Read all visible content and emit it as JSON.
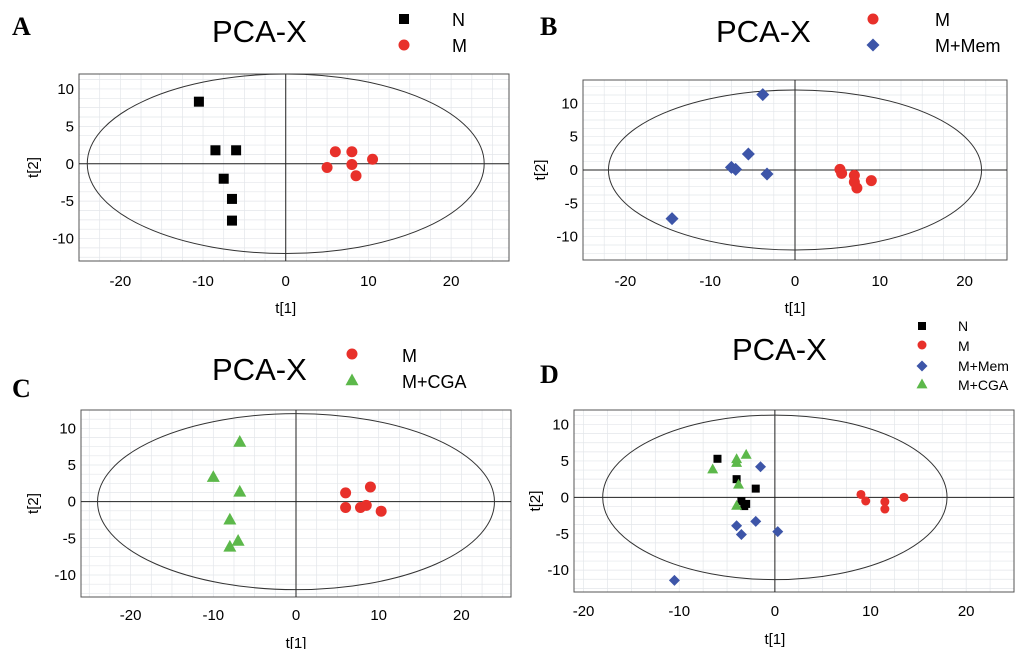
{
  "figure": {
    "panels": [
      "A",
      "B",
      "C",
      "D"
    ]
  },
  "chart_data": [
    {
      "type": "scatter",
      "panel": "A",
      "title": "PCA-X",
      "xlabel": "t[1]",
      "ylabel": "t[2]",
      "xlim": [
        -25,
        27
      ],
      "ylim": [
        -13,
        12
      ],
      "xticks": [
        -20,
        -10,
        0,
        10,
        20
      ],
      "yticks": [
        10,
        5,
        0,
        -5,
        -10
      ],
      "ellipse": {
        "rx": 24,
        "ry": 12
      },
      "grid": true,
      "legend": "top",
      "series": [
        {
          "name": "N",
          "color": "#000000",
          "marker": "square",
          "points": [
            [
              -10.5,
              8.3
            ],
            [
              -8.5,
              1.8
            ],
            [
              -6,
              1.8
            ],
            [
              -7.5,
              -2
            ],
            [
              -6.5,
              -4.7
            ],
            [
              -6.5,
              -7.6
            ]
          ]
        },
        {
          "name": "M",
          "color": "#e8302a",
          "marker": "circle",
          "points": [
            [
              5,
              -0.5
            ],
            [
              6,
              1.6
            ],
            [
              8,
              1.6
            ],
            [
              10.5,
              0.6
            ],
            [
              8,
              -0.1
            ],
            [
              8.5,
              -1.6
            ]
          ]
        }
      ]
    },
    {
      "type": "scatter",
      "panel": "B",
      "title": "PCA-X",
      "xlabel": "t[1]",
      "ylabel": "t[2]",
      "xlim": [
        -25,
        25
      ],
      "ylim": [
        -13.5,
        13.5
      ],
      "xticks": [
        -20,
        -10,
        0,
        10,
        20
      ],
      "yticks": [
        10,
        5,
        0,
        -5,
        -10
      ],
      "ellipse": {
        "rx": 22,
        "ry": 12
      },
      "grid": true,
      "legend": "top",
      "series": [
        {
          "name": "M",
          "color": "#e8302a",
          "marker": "circle",
          "points": [
            [
              5.3,
              0.1
            ],
            [
              5.5,
              -0.5
            ],
            [
              7,
              -0.8
            ],
            [
              7,
              -1.8
            ],
            [
              7.3,
              -2.7
            ],
            [
              9,
              -1.6
            ]
          ]
        },
        {
          "name": "M+Mem",
          "color": "#3d55a8",
          "marker": "diamond",
          "points": [
            [
              -3.8,
              11.3
            ],
            [
              -5.5,
              2.4
            ],
            [
              -7.5,
              0.4
            ],
            [
              -7,
              0.1
            ],
            [
              -3.3,
              -0.6
            ],
            [
              -14.5,
              -7.3
            ]
          ]
        }
      ]
    },
    {
      "type": "scatter",
      "panel": "C",
      "title": "PCA-X",
      "xlabel": "t[1]",
      "ylabel": "t[2]",
      "xlim": [
        -26,
        26
      ],
      "ylim": [
        -13,
        12.5
      ],
      "xticks": [
        -20,
        -10,
        0,
        10,
        20
      ],
      "yticks": [
        10,
        5,
        0,
        -5,
        -10
      ],
      "ellipse": {
        "rx": 24,
        "ry": 12
      },
      "grid": true,
      "legend": "top",
      "series": [
        {
          "name": "M",
          "color": "#e8302a",
          "marker": "circle",
          "points": [
            [
              6,
              1.2
            ],
            [
              9,
              2
            ],
            [
              6,
              -0.8
            ],
            [
              7.8,
              -0.8
            ],
            [
              8.5,
              -0.5
            ],
            [
              10.3,
              -1.3
            ]
          ]
        },
        {
          "name": "M+CGA",
          "color": "#5cb84a",
          "marker": "triangle",
          "points": [
            [
              -6.8,
              8.2
            ],
            [
              -10,
              3.4
            ],
            [
              -6.8,
              1.4
            ],
            [
              -8,
              -2.4
            ],
            [
              -7,
              -5.3
            ],
            [
              -8,
              -6.1
            ]
          ]
        }
      ]
    },
    {
      "type": "scatter",
      "panel": "D",
      "title": "PCA-X",
      "xlabel": "t[1]",
      "ylabel": "t[2]",
      "xlim": [
        -21,
        25
      ],
      "ylim": [
        -13,
        12
      ],
      "xticks": [
        -20,
        -10,
        0,
        10,
        20
      ],
      "yticks": [
        10,
        5,
        0,
        -5,
        -10
      ],
      "ellipse": {
        "rx": 18,
        "ry": 11.3
      },
      "grid": true,
      "legend": "top-right",
      "series": [
        {
          "name": "N",
          "color": "#000000",
          "marker": "square",
          "points": [
            [
              -6,
              5.3
            ],
            [
              -4,
              2.5
            ],
            [
              -3.5,
              -0.5
            ],
            [
              -3,
              -0.9
            ],
            [
              -3.2,
              -1.2
            ],
            [
              -2,
              1.2
            ]
          ]
        },
        {
          "name": "M",
          "color": "#e8302a",
          "marker": "circle",
          "points": [
            [
              9,
              0.4
            ],
            [
              9.5,
              -0.5
            ],
            [
              11.5,
              -0.6
            ],
            [
              11.5,
              -1.6
            ],
            [
              13.5,
              0
            ]
          ]
        },
        {
          "name": "M+Mem",
          "color": "#3d55a8",
          "marker": "diamond",
          "points": [
            [
              -1.5,
              4.2
            ],
            [
              -4,
              -3.9
            ],
            [
              -3.5,
              -5.1
            ],
            [
              -2,
              -3.3
            ],
            [
              0.3,
              -4.7
            ],
            [
              -10.5,
              -11.4
            ]
          ]
        },
        {
          "name": "M+CGA",
          "color": "#5cb84a",
          "marker": "triangle",
          "points": [
            [
              -6.5,
              3.9
            ],
            [
              -4,
              5.3
            ],
            [
              -4,
              4.8
            ],
            [
              -3,
              5.9
            ],
            [
              -3.8,
              1.8
            ],
            [
              -4,
              -1.1
            ]
          ]
        }
      ]
    }
  ]
}
